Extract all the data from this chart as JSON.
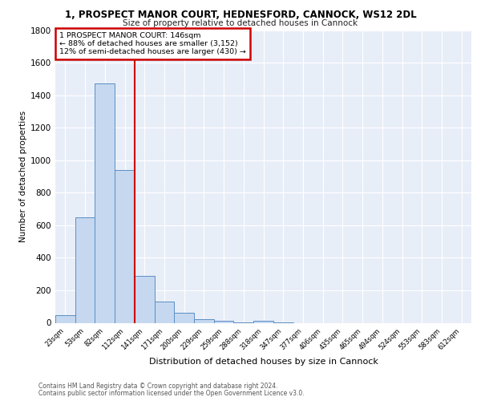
{
  "title_line1": "1, PROSPECT MANOR COURT, HEDNESFORD, CANNOCK, WS12 2DL",
  "title_line2": "Size of property relative to detached houses in Cannock",
  "xlabel": "Distribution of detached houses by size in Cannock",
  "ylabel": "Number of detached properties",
  "bar_labels": [
    "23sqm",
    "53sqm",
    "82sqm",
    "112sqm",
    "141sqm",
    "171sqm",
    "200sqm",
    "229sqm",
    "259sqm",
    "288sqm",
    "318sqm",
    "347sqm",
    "377sqm",
    "406sqm",
    "435sqm",
    "465sqm",
    "494sqm",
    "524sqm",
    "553sqm",
    "583sqm",
    "612sqm"
  ],
  "bar_values": [
    45,
    650,
    1470,
    940,
    290,
    130,
    60,
    22,
    10,
    4,
    12,
    2,
    0,
    0,
    0,
    0,
    0,
    0,
    0,
    0,
    0
  ],
  "annotation_line1": "1 PROSPECT MANOR COURT: 146sqm",
  "annotation_line2": "← 88% of detached houses are smaller (3,152)",
  "annotation_line3": "12% of semi-detached houses are larger (430) →",
  "bar_color": "#c5d8f0",
  "bar_edge_color": "#5b8ec4",
  "vline_color": "#cc0000",
  "vline_x": 3.5,
  "background_color": "#e8eef8",
  "grid_color": "#ffffff",
  "ylim": [
    0,
    1800
  ],
  "yticks": [
    0,
    200,
    400,
    600,
    800,
    1000,
    1200,
    1400,
    1600,
    1800
  ],
  "footnote1": "Contains HM Land Registry data © Crown copyright and database right 2024.",
  "footnote2": "Contains public sector information licensed under the Open Government Licence v3.0."
}
